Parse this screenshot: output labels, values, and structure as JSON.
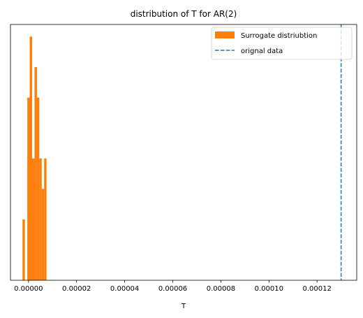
{
  "chart_data": {
    "type": "bar",
    "title": "distribution of T for AR(2)",
    "xlabel": "T",
    "ylabel": "",
    "xlim": [
      -7.5e-06,
      0.0001365
    ],
    "ylim": [
      0,
      8.4
    ],
    "x_ticks": [
      0,
      2e-05,
      4e-05,
      6e-05,
      8e-05,
      0.0001,
      0.00012
    ],
    "x_tick_labels": [
      "0.00000",
      "0.00002",
      "0.00004",
      "0.00006",
      "0.00008",
      "0.00010",
      "0.00012"
    ],
    "show_y_ticks": false,
    "grid": false,
    "legend_position": "top-right",
    "series": [
      {
        "name": "Surrogate distriubtion",
        "kind": "histogram",
        "color": "#ff7f0e",
        "bins": [
          {
            "x0": -2.5e-06,
            "x1": -1.5e-06,
            "count": 2
          },
          {
            "x0": -1.5e-06,
            "x1": -5e-07,
            "count": 0
          },
          {
            "x0": -5e-07,
            "x1": 5e-07,
            "count": 6
          },
          {
            "x0": 5e-07,
            "x1": 1.5e-06,
            "count": 8
          },
          {
            "x0": 1.5e-06,
            "x1": 2.5e-06,
            "count": 4
          },
          {
            "x0": 2.5e-06,
            "x1": 3.5e-06,
            "count": 7
          },
          {
            "x0": 3.5e-06,
            "x1": 4.5e-06,
            "count": 6
          },
          {
            "x0": 4.5e-06,
            "x1": 5.5e-06,
            "count": 4
          },
          {
            "x0": 5.5e-06,
            "x1": 6.5e-06,
            "count": 3
          },
          {
            "x0": 6.5e-06,
            "x1": 7.5e-06,
            "count": 4
          }
        ]
      },
      {
        "name": "orignal data",
        "kind": "vline",
        "color": "#1f77b4",
        "linestyle": "dashed",
        "x": 0.00013
      }
    ]
  }
}
